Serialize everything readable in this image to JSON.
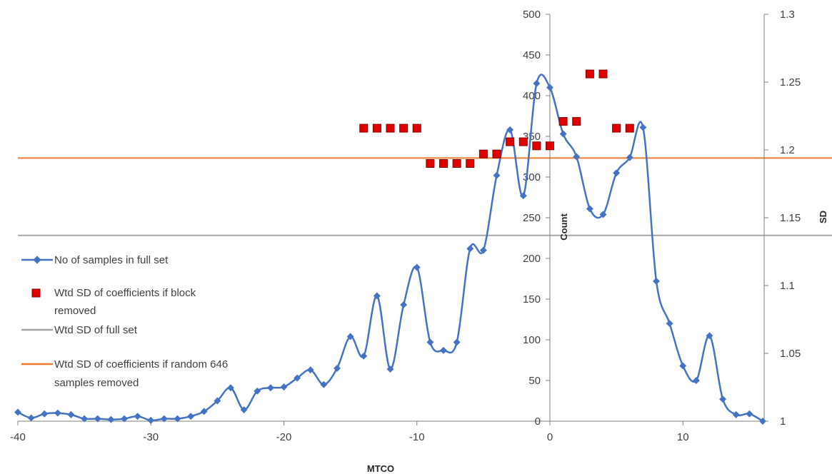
{
  "chart_data": {
    "type": "line",
    "title": "",
    "xlabel": "MTCO",
    "ylabel_left": "Count",
    "ylabel_right": "SD",
    "xlim": [
      -40,
      16
    ],
    "ylim_left": [
      0,
      500
    ],
    "ylim_right": [
      1,
      1.3
    ],
    "x_ticks": [
      "-40",
      "-30",
      "-20",
      "-10",
      "0",
      "10"
    ],
    "y_left_ticks": [
      "0",
      "50",
      "100",
      "150",
      "200",
      "250",
      "300",
      "350",
      "400",
      "450",
      "500"
    ],
    "y_right_ticks": [
      "1",
      "1.05",
      "1.1",
      "1.15",
      "1.2",
      "1.25",
      "1.3"
    ],
    "grid": false,
    "legend_position": "left",
    "series": [
      {
        "name": "No of samples in full set",
        "axis": "left",
        "style": "smooth-line-diamond",
        "color": "#4472c4",
        "x": [
          -40,
          -39,
          -38,
          -37,
          -36,
          -35,
          -34,
          -33,
          -32,
          -31,
          -30,
          -29,
          -28,
          -27,
          -26,
          -25,
          -24,
          -23,
          -22,
          -21,
          -20,
          -19,
          -18,
          -17,
          -16,
          -15,
          -14,
          -13,
          -12,
          -11,
          -10,
          -9,
          -8,
          -7,
          -6,
          -5,
          -4,
          -3,
          -2,
          -1,
          0,
          1,
          2,
          3,
          4,
          5,
          6,
          7,
          8,
          9,
          10,
          11,
          12,
          13,
          14,
          15,
          16
        ],
        "y": [
          11,
          4,
          9,
          10,
          8,
          3,
          3,
          2,
          3,
          6,
          1,
          3,
          3,
          6,
          12,
          25,
          41,
          14,
          37,
          41,
          42,
          53,
          63,
          45,
          65,
          104,
          80,
          154,
          64,
          143,
          189,
          97,
          87,
          97,
          212,
          210,
          302,
          358,
          277,
          415,
          410,
          353,
          325,
          261,
          254,
          305,
          324,
          361,
          172,
          120,
          68,
          50,
          105,
          27,
          8,
          9,
          0
        ]
      },
      {
        "name": "Wtd SD of coefficients if block removed",
        "axis": "right",
        "style": "square-markers",
        "color": "#e00000",
        "x": [
          -14,
          -13,
          -12,
          -11,
          -10,
          -9,
          -8,
          -7,
          -6,
          -5,
          -4,
          -3,
          -2,
          -1,
          0,
          1,
          2,
          3,
          4,
          5,
          6
        ],
        "y": [
          1.216,
          1.216,
          1.216,
          1.216,
          1.216,
          1.19,
          1.19,
          1.19,
          1.19,
          1.197,
          1.197,
          1.206,
          1.206,
          1.203,
          1.203,
          1.221,
          1.221,
          1.256,
          1.256,
          1.216,
          1.216
        ]
      },
      {
        "name": "Wtd SD of full set",
        "axis": "right",
        "style": "horizontal-line",
        "color": "#a5a5a5",
        "value": 1.137
      },
      {
        "name": "Wtd SD of coefficients if random 646 samples removed",
        "axis": "right",
        "style": "horizontal-line",
        "color": "#ed7d31",
        "value": 1.194
      }
    ]
  },
  "legend": {
    "item1": "No of samples in full set",
    "item2_line1": "Wtd SD of coefficients if block",
    "item2_line2": "removed",
    "item3": "Wtd SD of full set",
    "item4_line1": "Wtd SD of coefficients if random 646",
    "item4_line2": "samples removed"
  }
}
